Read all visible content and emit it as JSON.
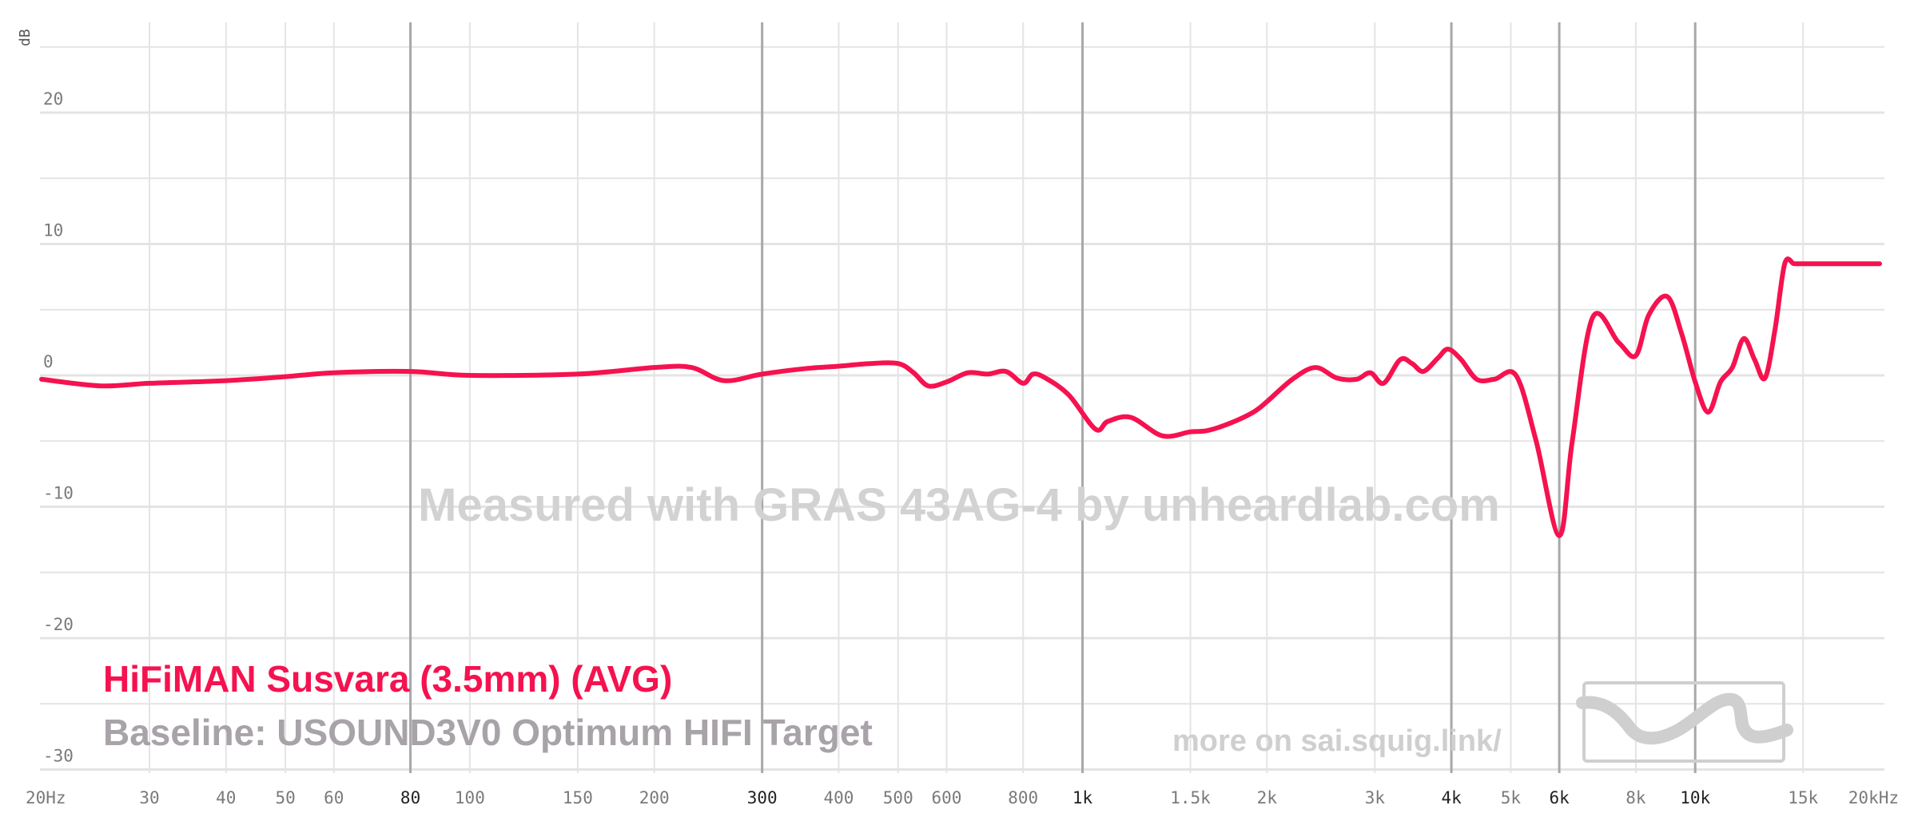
{
  "chart_data": {
    "type": "line",
    "title": "",
    "ylabel": "dB",
    "xlabel": "",
    "x_scale": "log",
    "xlim": [
      20,
      20000
    ],
    "ylim": [
      -32,
      26
    ],
    "grid": true,
    "y_ticks": [
      {
        "value": 20,
        "label": "20"
      },
      {
        "value": 10,
        "label": "10"
      },
      {
        "value": 0,
        "label": "0"
      },
      {
        "value": -10,
        "label": "-10"
      },
      {
        "value": -20,
        "label": "-20"
      },
      {
        "value": -30,
        "label": "-30"
      }
    ],
    "x_ticks": [
      {
        "value": 20,
        "label": "20Hz",
        "major": false
      },
      {
        "value": 30,
        "label": "30",
        "major": false
      },
      {
        "value": 40,
        "label": "40",
        "major": false
      },
      {
        "value": 50,
        "label": "50",
        "major": false
      },
      {
        "value": 60,
        "label": "60",
        "major": false
      },
      {
        "value": 80,
        "label": "80",
        "major": true
      },
      {
        "value": 100,
        "label": "100",
        "major": false
      },
      {
        "value": 150,
        "label": "150",
        "major": false
      },
      {
        "value": 200,
        "label": "200",
        "major": false
      },
      {
        "value": 300,
        "label": "300",
        "major": true
      },
      {
        "value": 400,
        "label": "400",
        "major": false
      },
      {
        "value": 500,
        "label": "500",
        "major": false
      },
      {
        "value": 600,
        "label": "600",
        "major": false
      },
      {
        "value": 800,
        "label": "800",
        "major": false
      },
      {
        "value": 1000,
        "label": "1k",
        "major": true
      },
      {
        "value": 1500,
        "label": "1.5k",
        "major": false
      },
      {
        "value": 2000,
        "label": "2k",
        "major": false
      },
      {
        "value": 3000,
        "label": "3k",
        "major": false
      },
      {
        "value": 4000,
        "label": "4k",
        "major": true
      },
      {
        "value": 5000,
        "label": "5k",
        "major": false
      },
      {
        "value": 6000,
        "label": "6k",
        "major": true
      },
      {
        "value": 8000,
        "label": "8k",
        "major": false
      },
      {
        "value": 10000,
        "label": "10k",
        "major": true
      },
      {
        "value": 15000,
        "label": "15k",
        "major": false
      },
      {
        "value": 20000,
        "label": "20kHz",
        "major": false
      }
    ],
    "series": [
      {
        "name": "HiFiMAN Susvara (3.5mm) (AVG)",
        "color": "#f5124f",
        "x": [
          20,
          25,
          30,
          40,
          50,
          60,
          80,
          100,
          150,
          200,
          230,
          260,
          300,
          350,
          400,
          450,
          500,
          530,
          560,
          600,
          650,
          700,
          750,
          800,
          830,
          870,
          950,
          1050,
          1100,
          1200,
          1350,
          1500,
          1600,
          1750,
          1900,
          2000,
          2200,
          2400,
          2600,
          2800,
          2950,
          3100,
          3300,
          3450,
          3600,
          3800,
          3950,
          4150,
          4400,
          4700,
          5100,
          5500,
          6000,
          6300,
          6800,
          7500,
          8000,
          8400,
          9000,
          9500,
          10000,
          10500,
          11000,
          11500,
          12000,
          12500,
          13000,
          13500,
          14000,
          14500,
          15000,
          15500,
          16000,
          16700,
          17500,
          18500,
          19200,
          20000
        ],
        "values": [
          -0.3,
          -0.8,
          -0.6,
          -0.4,
          -0.1,
          0.2,
          0.3,
          0.0,
          0.1,
          0.6,
          0.6,
          -0.4,
          0.1,
          0.5,
          0.7,
          0.9,
          0.9,
          0.2,
          -0.8,
          -0.5,
          0.2,
          0.1,
          0.3,
          -0.6,
          0.1,
          -0.2,
          -1.5,
          -4.1,
          -3.5,
          -3.2,
          -4.6,
          -4.3,
          -4.2,
          -3.6,
          -2.8,
          -2.0,
          -0.3,
          0.6,
          -0.2,
          -0.3,
          0.2,
          -0.6,
          1.2,
          0.9,
          0.3,
          1.3,
          2.0,
          1.2,
          -0.3,
          -0.3,
          0.0,
          -5.0,
          -12.2,
          -5.0,
          4.4,
          2.5,
          1.5,
          4.6,
          6.0,
          3.2,
          -0.5,
          -2.8,
          -0.5,
          0.6,
          2.8,
          1.2,
          -0.2,
          3.5,
          8.5,
          8.5,
          8.5,
          8.5,
          8.5,
          8.5,
          8.5,
          8.5,
          8.5,
          8.5
        ]
      }
    ],
    "legend": {
      "series_label": "HiFiMAN Susvara (3.5mm) (AVG)",
      "baseline_label": "Baseline: USOUND3V0 Optimum HIFI Target",
      "placement": "bottom-left"
    },
    "annotations": {
      "watermark": "Measured with GRAS 43AG-4 by unheardlab.com",
      "credit": "more on sai.squig.link/"
    },
    "colors": {
      "series": "#f5124f",
      "baseline_text": "#a8a3a8",
      "watermark": "#d2d2d2",
      "grid_minor": "#e4e4e4",
      "grid_major": "#a8a8a8"
    }
  },
  "logo": {
    "icon": "squiglink-logo-icon"
  }
}
